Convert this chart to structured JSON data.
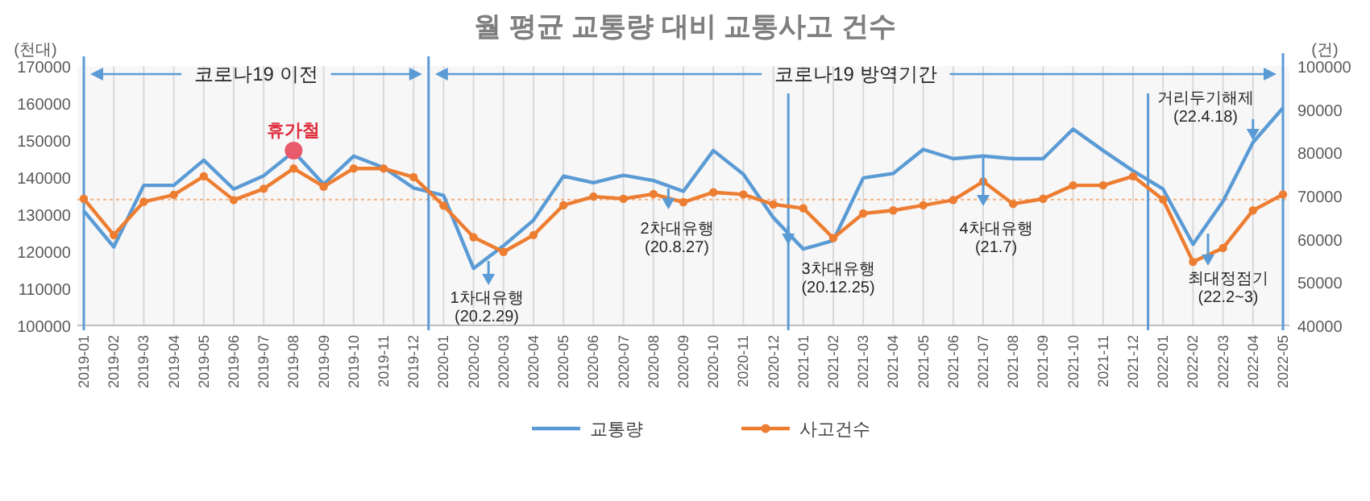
{
  "chart_data": {
    "type": "line",
    "title": "월 평균 교통량 대비 교통사고 건수",
    "ylabel": "(천대)",
    "y2label": "(건)",
    "categories": [
      "2019-01",
      "2019-02",
      "2019-03",
      "2019-04",
      "2019-05",
      "2019-06",
      "2019-07",
      "2019-08",
      "2019-09",
      "2019-10",
      "2019-11",
      "2019-12",
      "2020-01",
      "2020-02",
      "2020-03",
      "2020-04",
      "2020-05",
      "2020-06",
      "2020-07",
      "2020-08",
      "2020-09",
      "2020-10",
      "2020-11",
      "2020-12",
      "2021-01",
      "2021-02",
      "2021-03",
      "2021-04",
      "2021-05",
      "2021-06",
      "2021-07",
      "2021-08",
      "2021-09",
      "2021-10",
      "2021-11",
      "2021-12",
      "2022-01",
      "2022-02",
      "2022-03",
      "2022-04",
      "2022-05"
    ],
    "series": [
      {
        "name": "교통량",
        "color": "#5b9bd5",
        "marker": "none",
        "values": [
          130900,
          121200,
          137800,
          137800,
          144600,
          136800,
          140400,
          146900,
          138100,
          145700,
          142600,
          137100,
          135100,
          115400,
          121500,
          128400,
          140300,
          138500,
          140500,
          139100,
          136200,
          147200,
          140800,
          129100,
          120600,
          122900,
          139800,
          141000,
          147500,
          145000,
          145700,
          145000,
          145000,
          153000,
          147200,
          141700,
          136800,
          121900,
          133500,
          149400,
          158700
        ]
      },
      {
        "name": "사고건수",
        "color": "#ed7d31",
        "marker": "circle",
        "axis": "y2",
        "values": [
          69300,
          60900,
          68600,
          70200,
          74500,
          69000,
          71600,
          76300,
          72100,
          76300,
          76300,
          74300,
          67700,
          60400,
          57000,
          60900,
          67800,
          69800,
          69300,
          70400,
          68500,
          70800,
          70300,
          68000,
          67100,
          60200,
          65900,
          66600,
          67800,
          69000,
          73300,
          68100,
          69300,
          72400,
          72400,
          74500,
          69100,
          54700,
          57900,
          66600,
          70300
        ]
      },
      {
        "name": "휴가철",
        "type": "scatter",
        "color": "#e8596b",
        "marker": "circle",
        "values": [
          null,
          null,
          null,
          null,
          null,
          null,
          null,
          147200,
          null,
          null,
          null,
          null,
          null,
          null,
          null,
          null,
          null,
          null,
          null,
          null,
          null,
          null,
          null,
          null,
          null,
          null,
          null,
          null,
          null,
          null,
          null,
          null,
          null,
          null,
          null,
          null,
          null,
          null,
          null,
          null,
          null
        ]
      }
    ],
    "ylim": [
      100000,
      170000
    ],
    "yticks": [
      100000,
      110000,
      120000,
      130000,
      140000,
      150000,
      160000,
      170000
    ],
    "y2lim": [
      40000,
      100000
    ],
    "y2ticks": [
      40000,
      50000,
      60000,
      70000,
      80000,
      90000,
      100000
    ],
    "grid": "x",
    "legend": "bottom",
    "ref_lines": [
      {
        "axis": "y2",
        "value": 69100,
        "color": "#f4b183",
        "line_style": "dotted"
      }
    ],
    "annotations": [
      "코로나19 이전",
      "코로나19 방역기간",
      "1차대유행\n(20.2.29)",
      "2차대유행\n(20.8.27)",
      "3차대유행\n(20.12.25)",
      "4차대유행\n(21.7)",
      "최대정점기\n(22.2~3)",
      "거리두기해제\n(22.4.18)"
    ]
  }
}
